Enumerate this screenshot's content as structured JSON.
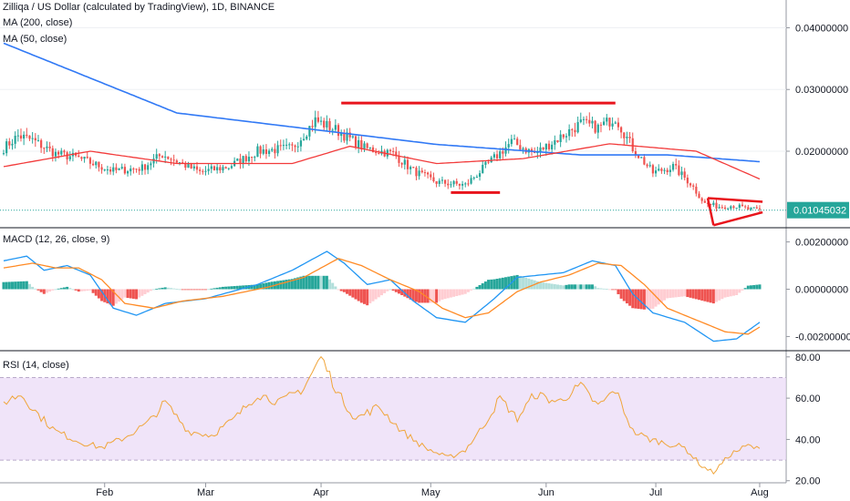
{
  "header": {
    "title": "Zilliqa / US Dollar (calculated by TradingView), 1D, BINANCE",
    "ma200_label": "MA (200, close)",
    "ma50_label": "MA (50, close)",
    "macd_label": "MACD (12, 26, close, 9)",
    "rsi_label": "RSI (14, close)"
  },
  "colors": {
    "up": "#26a69a",
    "down": "#ef5350",
    "ma200": "#3179f5",
    "ma50": "#f23b3b",
    "drawing": "#e8141c",
    "macd": "#2196f3",
    "signal": "#ff8a24",
    "rsi": "#f0a53a",
    "rsi_band": "#e9d9f7",
    "last_price_bg": "#26a69a"
  },
  "chart_data": [
    {
      "type": "candlestick",
      "title": "Zilliqa / US Dollar (calculated by TradingView), 1D, BINANCE",
      "x_ticks": [
        "Feb",
        "Mar",
        "Apr",
        "May",
        "Jun",
        "Jul",
        "Aug"
      ],
      "y_ticks": [
        "0.04000000",
        "0.03000000",
        "0.02000000"
      ],
      "last_price": "0.01045032",
      "ylim": [
        0.0076,
        0.0445
      ],
      "close_knots": [
        [
          0,
          0.0205
        ],
        [
          5,
          0.0225
        ],
        [
          10,
          0.0218
        ],
        [
          18,
          0.0196
        ],
        [
          25,
          0.019
        ],
        [
          38,
          0.0168
        ],
        [
          48,
          0.0173
        ],
        [
          55,
          0.0195
        ],
        [
          68,
          0.0166
        ],
        [
          78,
          0.0175
        ],
        [
          88,
          0.02
        ],
        [
          100,
          0.0205
        ],
        [
          108,
          0.025
        ],
        [
          115,
          0.0235
        ],
        [
          125,
          0.0205
        ],
        [
          135,
          0.0196
        ],
        [
          142,
          0.0168
        ],
        [
          150,
          0.015
        ],
        [
          160,
          0.0145
        ],
        [
          168,
          0.018
        ],
        [
          176,
          0.0215
        ],
        [
          184,
          0.0196
        ],
        [
          192,
          0.022
        ],
        [
          200,
          0.0245
        ],
        [
          206,
          0.0238
        ],
        [
          212,
          0.0255
        ],
        [
          218,
          0.0205
        ],
        [
          225,
          0.0165
        ],
        [
          232,
          0.0175
        ],
        [
          238,
          0.0148
        ],
        [
          243,
          0.0115
        ],
        [
          248,
          0.011
        ],
        [
          253,
          0.0112
        ],
        [
          258,
          0.0106
        ],
        [
          262,
          0.01045
        ]
      ],
      "ma200_knots": [
        [
          0,
          0.0375
        ],
        [
          60,
          0.0262
        ],
        [
          120,
          0.0228
        ],
        [
          150,
          0.0211
        ],
        [
          200,
          0.0194
        ],
        [
          230,
          0.0194
        ],
        [
          262,
          0.0183
        ]
      ],
      "ma50_knots": [
        [
          0,
          0.0175
        ],
        [
          30,
          0.02
        ],
        [
          60,
          0.018
        ],
        [
          100,
          0.018
        ],
        [
          120,
          0.0208
        ],
        [
          150,
          0.018
        ],
        [
          180,
          0.0188
        ],
        [
          210,
          0.0212
        ],
        [
          240,
          0.02
        ],
        [
          262,
          0.0155
        ]
      ],
      "annotations": [
        {
          "kind": "resistance",
          "y": 0.0278,
          "x": [
            117,
            212
          ]
        },
        {
          "kind": "support",
          "y": 0.0133,
          "x": [
            155,
            172
          ]
        },
        {
          "kind": "triangle-top",
          "points": [
            [
              244,
              0.0124
            ],
            [
              263,
              0.0118
            ]
          ]
        },
        {
          "kind": "triangle-bottom",
          "points": [
            [
              246,
              0.008
            ],
            [
              263,
              0.0101
            ]
          ]
        }
      ]
    },
    {
      "type": "line",
      "title": "MACD (12, 26, close, 9)",
      "y_ticks": [
        "0.00200000",
        "0.00000000",
        "-0.00200000"
      ],
      "ylim": [
        -0.0026,
        0.0026
      ],
      "macd_knots": [
        [
          0,
          0.0012
        ],
        [
          8,
          0.0014
        ],
        [
          14,
          0.0008
        ],
        [
          22,
          0.001
        ],
        [
          30,
          0.0006
        ],
        [
          38,
          -0.0008
        ],
        [
          46,
          -0.0011
        ],
        [
          56,
          -0.0006
        ],
        [
          70,
          -0.0004
        ],
        [
          88,
          0.0002
        ],
        [
          100,
          0.0008
        ],
        [
          112,
          0.0016
        ],
        [
          118,
          0.0011
        ],
        [
          126,
          0.0002
        ],
        [
          134,
          0.0004
        ],
        [
          142,
          -0.0005
        ],
        [
          150,
          -0.0012
        ],
        [
          160,
          -0.0014
        ],
        [
          170,
          -0.0004
        ],
        [
          178,
          0.0005
        ],
        [
          186,
          0.0006
        ],
        [
          194,
          0.0007
        ],
        [
          204,
          0.0012
        ],
        [
          212,
          0.001
        ],
        [
          218,
          -0.0002
        ],
        [
          225,
          -0.001
        ],
        [
          236,
          -0.0014
        ],
        [
          246,
          -0.0022
        ],
        [
          254,
          -0.0021
        ],
        [
          262,
          -0.0014
        ]
      ],
      "signal_knots": [
        [
          0,
          0.0009
        ],
        [
          10,
          0.0011
        ],
        [
          18,
          0.0009
        ],
        [
          26,
          0.0009
        ],
        [
          34,
          0.0004
        ],
        [
          42,
          -0.0006
        ],
        [
          52,
          -0.0008
        ],
        [
          62,
          -0.0005
        ],
        [
          76,
          -0.0003
        ],
        [
          92,
          0.0001
        ],
        [
          104,
          0.0005
        ],
        [
          116,
          0.0013
        ],
        [
          124,
          0.001
        ],
        [
          134,
          0.0004
        ],
        [
          144,
          -0.0001
        ],
        [
          152,
          -0.0008
        ],
        [
          160,
          -0.0012
        ],
        [
          168,
          -0.001
        ],
        [
          178,
          -0.0001
        ],
        [
          186,
          0.0003
        ],
        [
          196,
          0.0006
        ],
        [
          206,
          0.0011
        ],
        [
          214,
          0.001
        ],
        [
          222,
          0.0002
        ],
        [
          230,
          -0.0008
        ],
        [
          240,
          -0.0013
        ],
        [
          250,
          -0.0018
        ],
        [
          258,
          -0.0019
        ],
        [
          262,
          -0.0016
        ]
      ]
    },
    {
      "type": "line",
      "title": "RSI (14, close)",
      "y_ticks": [
        "80.00",
        "60.00",
        "40.00",
        "20.00"
      ],
      "ylim": [
        19,
        83
      ],
      "band": [
        30,
        70
      ],
      "rsi_knots": [
        [
          0,
          58
        ],
        [
          6,
          62
        ],
        [
          12,
          52
        ],
        [
          18,
          44
        ],
        [
          26,
          39
        ],
        [
          34,
          36
        ],
        [
          42,
          41
        ],
        [
          50,
          48
        ],
        [
          56,
          58
        ],
        [
          64,
          44
        ],
        [
          72,
          42
        ],
        [
          80,
          50
        ],
        [
          88,
          62
        ],
        [
          96,
          58
        ],
        [
          104,
          65
        ],
        [
          110,
          80
        ],
        [
          116,
          62
        ],
        [
          122,
          50
        ],
        [
          130,
          56
        ],
        [
          138,
          44
        ],
        [
          146,
          36
        ],
        [
          154,
          31
        ],
        [
          160,
          35
        ],
        [
          166,
          46
        ],
        [
          172,
          60
        ],
        [
          178,
          50
        ],
        [
          184,
          62
        ],
        [
          192,
          58
        ],
        [
          200,
          66
        ],
        [
          206,
          56
        ],
        [
          212,
          64
        ],
        [
          218,
          44
        ],
        [
          224,
          40
        ],
        [
          230,
          38
        ],
        [
          236,
          36
        ],
        [
          242,
          27
        ],
        [
          246,
          24
        ],
        [
          252,
          33
        ],
        [
          258,
          37
        ],
        [
          262,
          35
        ]
      ]
    }
  ]
}
